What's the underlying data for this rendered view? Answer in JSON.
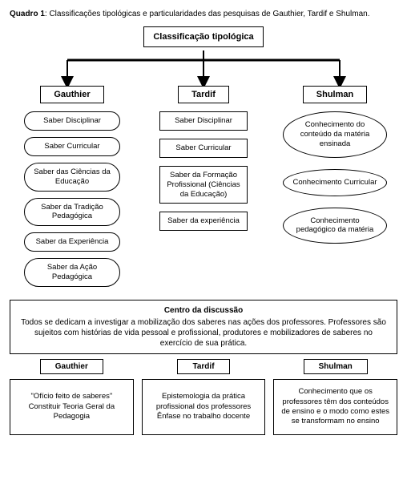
{
  "caption_bold": "Quadro 1",
  "caption_rest": ": Classificações tipológicas e particularidades das pesquisas de Gauthier, Tardif e Shulman.",
  "root": "Classificação  tipológica",
  "columns": {
    "gauthier": {
      "header": "Gauthier",
      "items": [
        "Saber Disciplinar",
        "Saber Curricular",
        "Saber das Ciências da Educação",
        "Saber da Tradição Pedagógica",
        "Saber da Experiência",
        "Saber da Ação Pedagógica"
      ]
    },
    "tardif": {
      "header": "Tardif",
      "items": [
        "Saber Disciplinar",
        "Saber Curricular",
        "Saber da Formação Profissional (Ciências da Educação)",
        "Saber da experiência"
      ]
    },
    "shulman": {
      "header": "Shulman",
      "items": [
        "Conhecimento do conteúdo da matéria ensinada",
        "Conhecimento Curricular",
        "Conhecimento pedagógico da matéria"
      ]
    }
  },
  "discussion": {
    "title": "Centro da discussão",
    "body": "Todos se dedicam a investigar a mobilização dos saberes nas ações dos professores. Professores são sujeitos com histórias de vida pessoal e profissional, produtores e mobilizadores de saberes no exercício de sua prática."
  },
  "bottom": {
    "gauthier": {
      "header": "Gauthier",
      "text": "\"Ofício feito de saberes\"\nConstituir Teoria Geral da Pedagogia"
    },
    "tardif": {
      "header": "Tardif",
      "text": "Epistemologia da prática profissional dos professores\nÊnfase no trabalho docente"
    },
    "shulman": {
      "header": "Shulman",
      "text": "Conhecimento  que os professores têm dos conteúdos de ensino  e o modo como estes se transformam no ensino"
    }
  },
  "style": {
    "background": "#ffffff",
    "text_color": "#000000",
    "border_color": "#000000",
    "caption_fontsize": 10,
    "header_fontsize": 11,
    "node_fontsize": 9.5,
    "arrow_color": "#000000",
    "connector_line_width": 2,
    "pill_shape": "rounded-rect",
    "rect_shape": "rect",
    "ellipse_shape": "ellipse"
  }
}
